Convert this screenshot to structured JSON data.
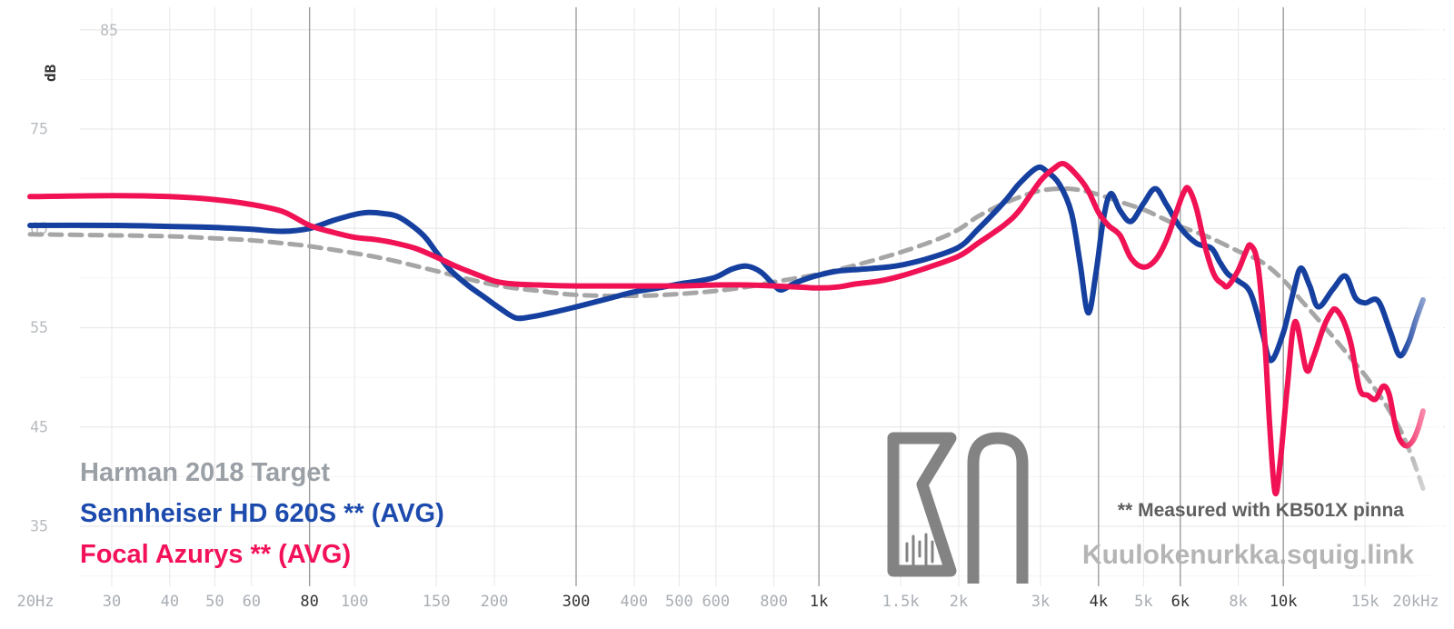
{
  "chart_data": {
    "type": "line",
    "title": "",
    "x_axis": {
      "scale": "log",
      "unit": "Hz",
      "min": 20,
      "max": 20000,
      "ticks": [
        {
          "f": 20,
          "label": "20Hz",
          "emph": false,
          "line": false
        },
        {
          "f": 30,
          "label": "30",
          "emph": false,
          "line": true
        },
        {
          "f": 40,
          "label": "40",
          "emph": false,
          "line": true
        },
        {
          "f": 50,
          "label": "50",
          "emph": false,
          "line": true
        },
        {
          "f": 60,
          "label": "60",
          "emph": false,
          "line": true
        },
        {
          "f": 80,
          "label": "80",
          "emph": true,
          "line": true
        },
        {
          "f": 100,
          "label": "100",
          "emph": false,
          "line": true
        },
        {
          "f": 150,
          "label": "150",
          "emph": false,
          "line": true
        },
        {
          "f": 200,
          "label": "200",
          "emph": false,
          "line": true
        },
        {
          "f": 300,
          "label": "300",
          "emph": true,
          "line": true
        },
        {
          "f": 400,
          "label": "400",
          "emph": false,
          "line": true
        },
        {
          "f": 500,
          "label": "500",
          "emph": false,
          "line": true
        },
        {
          "f": 600,
          "label": "600",
          "emph": false,
          "line": true
        },
        {
          "f": 800,
          "label": "800",
          "emph": false,
          "line": true
        },
        {
          "f": 1000,
          "label": "1k",
          "emph": true,
          "line": true
        },
        {
          "f": 1500,
          "label": "1.5k",
          "emph": false,
          "line": true
        },
        {
          "f": 2000,
          "label": "2k",
          "emph": false,
          "line": true
        },
        {
          "f": 3000,
          "label": "3k",
          "emph": false,
          "line": true
        },
        {
          "f": 4000,
          "label": "4k",
          "emph": true,
          "line": true
        },
        {
          "f": 5000,
          "label": "5k",
          "emph": false,
          "line": true
        },
        {
          "f": 6000,
          "label": "6k",
          "emph": true,
          "line": true
        },
        {
          "f": 8000,
          "label": "8k",
          "emph": false,
          "line": true
        },
        {
          "f": 10000,
          "label": "10k",
          "emph": true,
          "line": true
        },
        {
          "f": 15000,
          "label": "15k",
          "emph": false,
          "line": true
        },
        {
          "f": 20000,
          "label": "20kHz",
          "emph": false,
          "line": false
        }
      ]
    },
    "y_axis": {
      "unit": "dB",
      "min": 30,
      "max": 85,
      "labeled_ticks": [
        85,
        75,
        65,
        55,
        45,
        35
      ],
      "grid_step": 5
    },
    "grid": true,
    "legend_position": "bottom-left",
    "series": [
      {
        "name": "Harman 2018 Target",
        "style": "dashed",
        "color": "#a6a6a6",
        "legend_color": "#9aa0a6",
        "points": [
          [
            20,
            64.4
          ],
          [
            30,
            64.3
          ],
          [
            40,
            64.2
          ],
          [
            50,
            64.0
          ],
          [
            60,
            63.8
          ],
          [
            70,
            63.5
          ],
          [
            80,
            63.2
          ],
          [
            100,
            62.5
          ],
          [
            120,
            61.8
          ],
          [
            150,
            60.7
          ],
          [
            200,
            59.3
          ],
          [
            250,
            58.7
          ],
          [
            300,
            58.3
          ],
          [
            400,
            58.2
          ],
          [
            500,
            58.4
          ],
          [
            600,
            58.7
          ],
          [
            700,
            59.1
          ],
          [
            800,
            59.6
          ],
          [
            1000,
            60.4
          ],
          [
            1200,
            61.3
          ],
          [
            1500,
            62.6
          ],
          [
            1800,
            63.9
          ],
          [
            2000,
            64.9
          ],
          [
            2200,
            66.2
          ],
          [
            2500,
            67.5
          ],
          [
            2800,
            68.4
          ],
          [
            3000,
            68.8
          ],
          [
            3300,
            69.0
          ],
          [
            3600,
            68.9
          ],
          [
            4000,
            68.4
          ],
          [
            4500,
            67.6
          ],
          [
            5000,
            66.9
          ],
          [
            5500,
            66.0
          ],
          [
            6000,
            65.2
          ],
          [
            6500,
            64.6
          ],
          [
            7000,
            64.0
          ],
          [
            8000,
            62.7
          ],
          [
            9000,
            61.6
          ],
          [
            10000,
            59.8
          ],
          [
            11000,
            57.6
          ],
          [
            12000,
            55.6
          ],
          [
            13000,
            53.7
          ],
          [
            14000,
            51.9
          ],
          [
            15000,
            50.2
          ],
          [
            16000,
            48.4
          ],
          [
            17000,
            46.5
          ],
          [
            18000,
            44.4
          ],
          [
            19000,
            41.8
          ],
          [
            20000,
            38.8
          ]
        ]
      },
      {
        "name": "Sennheiser HD 620S ** (AVG)",
        "style": "solid",
        "color": "#16409f",
        "legend_color": "#1c4aad",
        "points": [
          [
            20,
            65.3
          ],
          [
            30,
            65.3
          ],
          [
            40,
            65.2
          ],
          [
            50,
            65.1
          ],
          [
            60,
            64.9
          ],
          [
            70,
            64.7
          ],
          [
            80,
            65.0
          ],
          [
            90,
            65.8
          ],
          [
            100,
            66.4
          ],
          [
            107,
            66.6
          ],
          [
            115,
            66.5
          ],
          [
            125,
            66.1
          ],
          [
            140,
            64.4
          ],
          [
            150,
            62.6
          ],
          [
            160,
            60.9
          ],
          [
            175,
            59.3
          ],
          [
            190,
            58.1
          ],
          [
            205,
            57.0
          ],
          [
            222,
            56.0
          ],
          [
            240,
            56.1
          ],
          [
            265,
            56.5
          ],
          [
            300,
            57.1
          ],
          [
            350,
            57.9
          ],
          [
            400,
            58.6
          ],
          [
            450,
            59.0
          ],
          [
            500,
            59.4
          ],
          [
            550,
            59.7
          ],
          [
            600,
            60.1
          ],
          [
            650,
            60.9
          ],
          [
            700,
            61.2
          ],
          [
            750,
            60.6
          ],
          [
            800,
            59.3
          ],
          [
            830,
            58.8
          ],
          [
            880,
            59.4
          ],
          [
            950,
            60.0
          ],
          [
            1000,
            60.3
          ],
          [
            1100,
            60.7
          ],
          [
            1250,
            60.9
          ],
          [
            1400,
            61.1
          ],
          [
            1500,
            61.3
          ],
          [
            1700,
            61.9
          ],
          [
            2000,
            63.1
          ],
          [
            2200,
            64.9
          ],
          [
            2500,
            67.6
          ],
          [
            2700,
            69.5
          ],
          [
            2950,
            71.1
          ],
          [
            3100,
            70.7
          ],
          [
            3300,
            69.4
          ],
          [
            3500,
            66.5
          ],
          [
            3650,
            61.5
          ],
          [
            3800,
            56.5
          ],
          [
            3950,
            60.5
          ],
          [
            4100,
            66.0
          ],
          [
            4250,
            68.5
          ],
          [
            4450,
            66.8
          ],
          [
            4700,
            65.7
          ],
          [
            5000,
            67.5
          ],
          [
            5300,
            69.0
          ],
          [
            5600,
            67.4
          ],
          [
            6000,
            65.1
          ],
          [
            6500,
            63.5
          ],
          [
            7000,
            63.0
          ],
          [
            7300,
            61.6
          ],
          [
            7600,
            60.4
          ],
          [
            8000,
            59.7
          ],
          [
            8500,
            58.5
          ],
          [
            9000,
            54.6
          ],
          [
            9400,
            51.7
          ],
          [
            10000,
            54.5
          ],
          [
            10500,
            58.5
          ],
          [
            10900,
            61.0
          ],
          [
            11400,
            59.2
          ],
          [
            11900,
            57.1
          ],
          [
            12800,
            58.9
          ],
          [
            13600,
            60.2
          ],
          [
            14300,
            58.0
          ],
          [
            15000,
            57.5
          ],
          [
            16000,
            57.7
          ],
          [
            17000,
            54.6
          ],
          [
            17800,
            52.2
          ],
          [
            18600,
            53.5
          ],
          [
            19300,
            55.8
          ],
          [
            20000,
            57.8
          ]
        ]
      },
      {
        "name": "Focal Azurys ** (AVG)",
        "style": "solid",
        "color": "#f01254",
        "legend_color": "#f3125a",
        "points": [
          [
            20,
            68.2
          ],
          [
            30,
            68.3
          ],
          [
            40,
            68.2
          ],
          [
            50,
            67.9
          ],
          [
            60,
            67.4
          ],
          [
            70,
            66.7
          ],
          [
            80,
            65.3
          ],
          [
            90,
            64.6
          ],
          [
            100,
            64.1
          ],
          [
            110,
            63.9
          ],
          [
            120,
            63.6
          ],
          [
            135,
            63.0
          ],
          [
            150,
            62.1
          ],
          [
            165,
            61.2
          ],
          [
            180,
            60.5
          ],
          [
            200,
            59.7
          ],
          [
            220,
            59.4
          ],
          [
            250,
            59.3
          ],
          [
            300,
            59.2
          ],
          [
            400,
            59.2
          ],
          [
            500,
            59.2
          ],
          [
            600,
            59.3
          ],
          [
            700,
            59.3
          ],
          [
            800,
            59.2
          ],
          [
            900,
            59.1
          ],
          [
            1000,
            59.0
          ],
          [
            1100,
            59.1
          ],
          [
            1200,
            59.4
          ],
          [
            1350,
            59.7
          ],
          [
            1500,
            60.2
          ],
          [
            1700,
            61.0
          ],
          [
            2000,
            62.2
          ],
          [
            2200,
            63.5
          ],
          [
            2500,
            65.3
          ],
          [
            2700,
            66.8
          ],
          [
            3000,
            69.8
          ],
          [
            3200,
            71.0
          ],
          [
            3370,
            71.5
          ],
          [
            3600,
            70.3
          ],
          [
            3800,
            68.8
          ],
          [
            4000,
            66.6
          ],
          [
            4200,
            65.3
          ],
          [
            4450,
            64.3
          ],
          [
            4700,
            62.0
          ],
          [
            5000,
            61.1
          ],
          [
            5300,
            61.8
          ],
          [
            5600,
            63.8
          ],
          [
            5900,
            66.8
          ],
          [
            6100,
            68.6
          ],
          [
            6250,
            69.0
          ],
          [
            6500,
            67.0
          ],
          [
            6800,
            63.0
          ],
          [
            7100,
            60.3
          ],
          [
            7400,
            59.4
          ],
          [
            7600,
            59.2
          ],
          [
            8000,
            60.8
          ],
          [
            8300,
            62.6
          ],
          [
            8500,
            63.3
          ],
          [
            8800,
            61.5
          ],
          [
            9100,
            54.5
          ],
          [
            9350,
            45.0
          ],
          [
            9600,
            38.4
          ],
          [
            9850,
            41.5
          ],
          [
            10200,
            49.1
          ],
          [
            10600,
            55.6
          ],
          [
            11200,
            50.8
          ],
          [
            11600,
            52.0
          ],
          [
            12200,
            55.0
          ],
          [
            12700,
            56.6
          ],
          [
            13000,
            56.8
          ],
          [
            13500,
            55.6
          ],
          [
            14000,
            53.3
          ],
          [
            14600,
            48.8
          ],
          [
            15200,
            48.2
          ],
          [
            15800,
            47.8
          ],
          [
            16400,
            49.1
          ],
          [
            16900,
            48.3
          ],
          [
            17400,
            45.3
          ],
          [
            17800,
            43.8
          ],
          [
            18400,
            43.1
          ],
          [
            19000,
            43.6
          ],
          [
            19500,
            44.8
          ],
          [
            20000,
            46.6
          ]
        ]
      }
    ]
  },
  "axis": {
    "y_unit_label": "dB"
  },
  "notes": {
    "pinna": "** Measured with KB501X pinna",
    "watermark": "Kuulokenurkka.squig.link"
  },
  "logo": {
    "name": "Kuulokenurkka KN logo",
    "color": "#838383"
  },
  "palette": {
    "grid_minor_v": "#e7e7e7",
    "grid_emph_v": "#9c9c9c",
    "grid_major_h": "#eaeaea",
    "grid_minor_h": "#f4f4f4",
    "tick_label_light": "#a9aeb4",
    "tick_label_dark": "#333333",
    "y_label": "#b7bbbf"
  }
}
